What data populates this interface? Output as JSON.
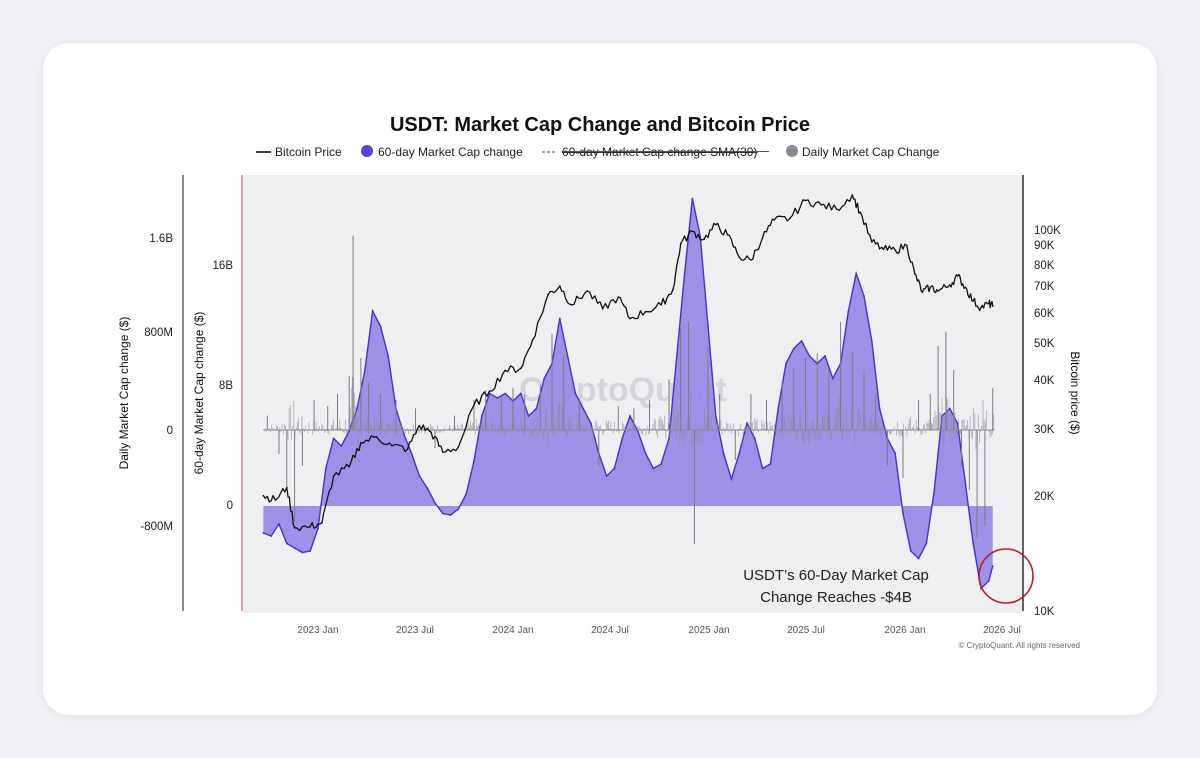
{
  "chart_data": {
    "type": "area",
    "title": "USDT: Market Cap Change and Bitcoin Price",
    "legend": [
      {
        "label": "Bitcoin Price",
        "color": "#111111",
        "style": "line"
      },
      {
        "label": "60-day Market Cap change",
        "color": "#5b3fd6",
        "style": "dot"
      },
      {
        "label": "60-day Market Cap change SMA(30)",
        "color": "#777777",
        "style": "dashed",
        "hidden": true
      },
      {
        "label": "Daily Market Cap Change",
        "color": "#8a8a90",
        "style": "dot"
      }
    ],
    "legend_placement": "top-center",
    "grid": false,
    "x_ticks": [
      "2023 Jan",
      "2023 Jul",
      "2024 Jan",
      "2024 Jul",
      "2025 Jan",
      "2025 Jul",
      "2026 Jan",
      "2026 Jul"
    ],
    "axes": {
      "left_outer": {
        "label": "Daily Market Cap change ($)",
        "ticks": [
          "1.6B",
          "800M",
          "0",
          "-800M"
        ]
      },
      "left_inner": {
        "label": "60-day Market Cap change ($)",
        "ticks": [
          "16B",
          "8B",
          "0"
        ]
      },
      "right": {
        "label": "Bitcoin price ($)",
        "scale": "log",
        "ticks": [
          "100K",
          "90K",
          "80K",
          "70K",
          "60K",
          "50K",
          "40K",
          "30K",
          "20K",
          "10K"
        ]
      }
    },
    "series": [
      {
        "name": "60-day Market Cap change",
        "unit": "$B",
        "points": [
          [
            2022.72,
            -1.8
          ],
          [
            2022.76,
            -2.0
          ],
          [
            2022.8,
            -1.2
          ],
          [
            2022.84,
            -2.5
          ],
          [
            2022.88,
            -2.8
          ],
          [
            2022.92,
            -3.1
          ],
          [
            2022.96,
            -3.0
          ],
          [
            2023.0,
            -1.5
          ],
          [
            2023.04,
            2.5
          ],
          [
            2023.08,
            4.5
          ],
          [
            2023.12,
            4.0
          ],
          [
            2023.16,
            5.0
          ],
          [
            2023.2,
            6.5
          ],
          [
            2023.24,
            9.0
          ],
          [
            2023.28,
            13.0
          ],
          [
            2023.32,
            12.0
          ],
          [
            2023.36,
            10.0
          ],
          [
            2023.4,
            6.5
          ],
          [
            2023.44,
            4.8
          ],
          [
            2023.48,
            3.5
          ],
          [
            2023.52,
            2.0
          ],
          [
            2023.56,
            1.2
          ],
          [
            2023.6,
            0.2
          ],
          [
            2023.64,
            -0.5
          ],
          [
            2023.68,
            -0.6
          ],
          [
            2023.72,
            -0.2
          ],
          [
            2023.76,
            0.8
          ],
          [
            2023.8,
            3.0
          ],
          [
            2023.84,
            6.0
          ],
          [
            2023.88,
            7.5
          ],
          [
            2023.92,
            7.2
          ],
          [
            2023.96,
            7.5
          ],
          [
            2024.0,
            7.0
          ],
          [
            2024.04,
            7.5
          ],
          [
            2024.08,
            6.0
          ],
          [
            2024.12,
            6.5
          ],
          [
            2024.16,
            8.5
          ],
          [
            2024.2,
            9.5
          ],
          [
            2024.24,
            12.5
          ],
          [
            2024.28,
            10.0
          ],
          [
            2024.32,
            7.5
          ],
          [
            2024.36,
            6.5
          ],
          [
            2024.4,
            5.5
          ],
          [
            2024.44,
            3.5
          ],
          [
            2024.48,
            2.0
          ],
          [
            2024.52,
            2.5
          ],
          [
            2024.56,
            4.5
          ],
          [
            2024.6,
            6.0
          ],
          [
            2024.64,
            5.0
          ],
          [
            2024.68,
            3.5
          ],
          [
            2024.72,
            2.5
          ],
          [
            2024.76,
            2.8
          ],
          [
            2024.8,
            4.5
          ],
          [
            2024.84,
            10.0
          ],
          [
            2024.88,
            15.5
          ],
          [
            2024.92,
            20.5
          ],
          [
            2024.96,
            18.0
          ],
          [
            2025.0,
            12.0
          ],
          [
            2025.04,
            6.0
          ],
          [
            2025.08,
            3.5
          ],
          [
            2025.12,
            1.8
          ],
          [
            2025.16,
            3.5
          ],
          [
            2025.2,
            5.5
          ],
          [
            2025.24,
            4.5
          ],
          [
            2025.28,
            2.5
          ],
          [
            2025.32,
            2.8
          ],
          [
            2025.36,
            6.5
          ],
          [
            2025.4,
            9.5
          ],
          [
            2025.44,
            10.5
          ],
          [
            2025.48,
            11.0
          ],
          [
            2025.52,
            10.0
          ],
          [
            2025.56,
            9.5
          ],
          [
            2025.6,
            10.0
          ],
          [
            2025.64,
            8.5
          ],
          [
            2025.68,
            9.5
          ],
          [
            2025.72,
            13.0
          ],
          [
            2025.76,
            15.5
          ],
          [
            2025.8,
            14.0
          ],
          [
            2025.84,
            11.0
          ],
          [
            2025.88,
            6.5
          ],
          [
            2025.92,
            4.5
          ],
          [
            2025.96,
            3.5
          ],
          [
            2026.0,
            -0.5
          ],
          [
            2026.04,
            -3.0
          ],
          [
            2026.08,
            -3.5
          ],
          [
            2026.12,
            -2.5
          ],
          [
            2026.16,
            1.0
          ],
          [
            2026.2,
            6.0
          ],
          [
            2026.24,
            6.5
          ],
          [
            2026.28,
            5.5
          ],
          [
            2026.32,
            1.5
          ],
          [
            2026.36,
            -2.5
          ],
          [
            2026.4,
            -5.5
          ],
          [
            2026.44,
            -5.0
          ],
          [
            2026.46,
            -4.0
          ]
        ]
      },
      {
        "name": "Bitcoin Price",
        "unit": "$",
        "points": [
          [
            2022.72,
            20000
          ],
          [
            2022.78,
            19500
          ],
          [
            2022.84,
            21000
          ],
          [
            2022.88,
            16500
          ],
          [
            2022.96,
            16600
          ],
          [
            2023.02,
            17000
          ],
          [
            2023.08,
            22500
          ],
          [
            2023.16,
            23800
          ],
          [
            2023.22,
            27500
          ],
          [
            2023.3,
            28500
          ],
          [
            2023.38,
            27000
          ],
          [
            2023.46,
            26500
          ],
          [
            2023.52,
            30500
          ],
          [
            2023.58,
            29300
          ],
          [
            2023.64,
            26000
          ],
          [
            2023.72,
            26800
          ],
          [
            2023.8,
            34500
          ],
          [
            2023.88,
            37500
          ],
          [
            2023.96,
            42500
          ],
          [
            2024.04,
            43000
          ],
          [
            2024.1,
            51000
          ],
          [
            2024.18,
            67000
          ],
          [
            2024.24,
            70500
          ],
          [
            2024.3,
            63000
          ],
          [
            2024.38,
            68500
          ],
          [
            2024.46,
            61500
          ],
          [
            2024.54,
            66000
          ],
          [
            2024.6,
            58000
          ],
          [
            2024.68,
            60500
          ],
          [
            2024.76,
            63000
          ],
          [
            2024.82,
            69000
          ],
          [
            2024.86,
            91000
          ],
          [
            2024.92,
            98000
          ],
          [
            2024.98,
            93500
          ],
          [
            2025.04,
            102000
          ],
          [
            2025.1,
            96000
          ],
          [
            2025.16,
            84000
          ],
          [
            2025.22,
            82500
          ],
          [
            2025.28,
            94500
          ],
          [
            2025.34,
            105000
          ],
          [
            2025.42,
            106000
          ],
          [
            2025.5,
            118000
          ],
          [
            2025.58,
            115000
          ],
          [
            2025.66,
            112000
          ],
          [
            2025.74,
            122000
          ],
          [
            2025.78,
            110000
          ],
          [
            2025.84,
            92000
          ],
          [
            2025.9,
            88000
          ],
          [
            2025.96,
            87500
          ],
          [
            2026.02,
            90000
          ],
          [
            2026.06,
            76000
          ],
          [
            2026.1,
            68000
          ],
          [
            2026.14,
            70000
          ],
          [
            2026.18,
            68500
          ],
          [
            2026.24,
            71000
          ],
          [
            2026.28,
            75000
          ],
          [
            2026.32,
            70000
          ],
          [
            2026.36,
            64500
          ],
          [
            2026.4,
            62000
          ],
          [
            2026.44,
            63500
          ],
          [
            2026.46,
            62500
          ]
        ]
      },
      {
        "name": "Daily Market Cap Change",
        "unit": "$M",
        "points": [
          [
            2022.74,
            120
          ],
          [
            2022.8,
            -200
          ],
          [
            2022.84,
            -480
          ],
          [
            2022.88,
            -760
          ],
          [
            2022.92,
            -300
          ],
          [
            2022.98,
            250
          ],
          [
            2023.05,
            200
          ],
          [
            2023.1,
            300
          ],
          [
            2023.16,
            450
          ],
          [
            2023.18,
            1620
          ],
          [
            2023.22,
            600
          ],
          [
            2023.26,
            400
          ],
          [
            2023.32,
            300
          ],
          [
            2023.4,
            250
          ],
          [
            2023.5,
            180
          ],
          [
            2023.6,
            -150
          ],
          [
            2023.7,
            120
          ],
          [
            2023.8,
            250
          ],
          [
            2023.86,
            330
          ],
          [
            2023.94,
            280
          ],
          [
            2024.0,
            350
          ],
          [
            2024.06,
            300
          ],
          [
            2024.14,
            380
          ],
          [
            2024.2,
            800
          ],
          [
            2024.26,
            620
          ],
          [
            2024.34,
            260
          ],
          [
            2024.44,
            -300
          ],
          [
            2024.54,
            200
          ],
          [
            2024.62,
            180
          ],
          [
            2024.7,
            250
          ],
          [
            2024.8,
            420
          ],
          [
            2024.86,
            850
          ],
          [
            2024.9,
            900
          ],
          [
            2024.93,
            -950
          ],
          [
            2025.0,
            700
          ],
          [
            2025.06,
            300
          ],
          [
            2025.14,
            -250
          ],
          [
            2025.22,
            300
          ],
          [
            2025.3,
            250
          ],
          [
            2025.38,
            400
          ],
          [
            2025.44,
            520
          ],
          [
            2025.5,
            600
          ],
          [
            2025.56,
            640
          ],
          [
            2025.62,
            500
          ],
          [
            2025.68,
            900
          ],
          [
            2025.74,
            650
          ],
          [
            2025.8,
            500
          ],
          [
            2025.86,
            300
          ],
          [
            2025.92,
            -300
          ],
          [
            2026.0,
            -400
          ],
          [
            2026.08,
            250
          ],
          [
            2026.14,
            300
          ],
          [
            2026.18,
            700
          ],
          [
            2026.22,
            820
          ],
          [
            2026.26,
            500
          ],
          [
            2026.3,
            -300
          ],
          [
            2026.34,
            -500
          ],
          [
            2026.38,
            -900
          ],
          [
            2026.42,
            -800
          ],
          [
            2026.46,
            350
          ]
        ]
      }
    ],
    "annotations": [
      {
        "text_lines": [
          "USDT’s 60-Day Market Cap",
          "Change Reaches -$4B"
        ],
        "highlight": "red-circle"
      }
    ],
    "watermark": "CryptoQuant",
    "copyright": "© CryptoQuant. All rights reserved"
  }
}
